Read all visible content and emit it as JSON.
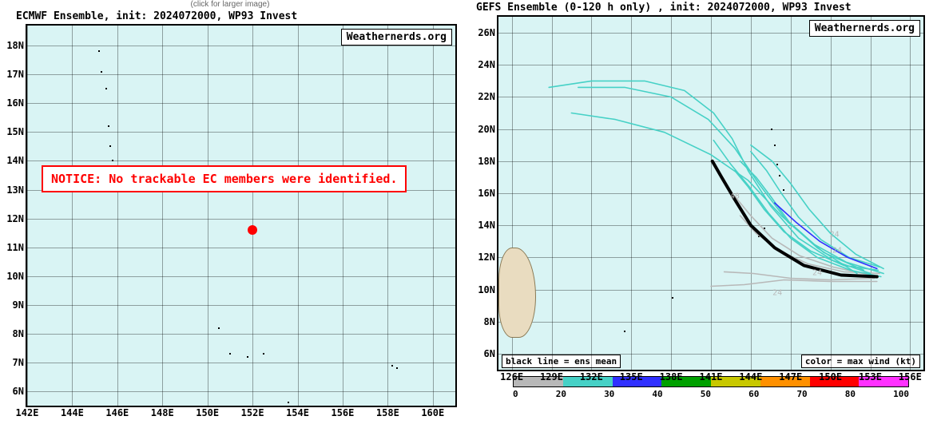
{
  "left": {
    "hint": "(click for larger image)",
    "title": "ECMWF Ensemble, init: 2024072000, WP93 Invest",
    "branding": "Weathernerds.org",
    "notice": "NOTICE: No trackable EC members were identified.",
    "xlim": [
      142,
      161
    ],
    "ylim": [
      5.5,
      18.7
    ],
    "xticks": [
      142,
      144,
      146,
      148,
      150,
      152,
      154,
      156,
      158,
      160
    ],
    "yticks": [
      6,
      7,
      8,
      9,
      10,
      11,
      12,
      13,
      14,
      15,
      16,
      17,
      18
    ],
    "xtick_suffix": "E",
    "ytick_suffix": "N",
    "background_color": "#d9f4f4",
    "grid_color": "#000000",
    "dot": {
      "lon": 152.0,
      "lat": 11.6,
      "color": "#ff0000",
      "size": 12
    },
    "specks": [
      {
        "lon": 145.2,
        "lat": 17.8
      },
      {
        "lon": 145.3,
        "lat": 17.1
      },
      {
        "lon": 145.5,
        "lat": 16.5
      },
      {
        "lon": 145.6,
        "lat": 15.2
      },
      {
        "lon": 145.7,
        "lat": 14.5
      },
      {
        "lon": 145.8,
        "lat": 14.0
      },
      {
        "lon": 150.5,
        "lat": 8.2
      },
      {
        "lon": 151.0,
        "lat": 7.3
      },
      {
        "lon": 151.8,
        "lat": 7.2
      },
      {
        "lon": 152.5,
        "lat": 7.3
      },
      {
        "lon": 153.6,
        "lat": 5.6
      },
      {
        "lon": 158.2,
        "lat": 6.9
      },
      {
        "lon": 158.4,
        "lat": 6.8
      }
    ]
  },
  "right": {
    "title": "GEFS Ensemble (0-120 h only) , init: 2024072000, WP93 Invest",
    "branding": "Weathernerds.org",
    "legend_left": "black line = ens mean",
    "legend_right": "color = max wind (kt)",
    "xlim": [
      125,
      157
    ],
    "ylim": [
      5,
      27
    ],
    "xticks": [
      126,
      129,
      132,
      135,
      138,
      141,
      144,
      147,
      150,
      153,
      156
    ],
    "yticks": [
      6,
      8,
      10,
      12,
      14,
      16,
      18,
      20,
      22,
      24,
      26
    ],
    "xtick_suffix": "E",
    "ytick_suffix": "N",
    "background_color": "#d9f4f4",
    "grid_color": "#000000",
    "land": [
      {
        "lon0": 125.0,
        "lat0": 7.0,
        "lon1": 127.8,
        "lat1": 12.6
      }
    ],
    "mean_track": {
      "color": "#000000",
      "width": 4,
      "pts": [
        {
          "lon": 153.5,
          "lat": 10.8
        },
        {
          "lon": 150.8,
          "lat": 10.9
        },
        {
          "lon": 148.0,
          "lat": 11.5
        },
        {
          "lon": 145.8,
          "lat": 12.6
        },
        {
          "lon": 144.0,
          "lat": 14.0
        },
        {
          "lon": 142.8,
          "lat": 15.6
        },
        {
          "lon": 141.8,
          "lat": 17.0
        },
        {
          "lon": 141.1,
          "lat": 18.0
        }
      ]
    },
    "member_tracks": [
      {
        "color": "#b8b8b8",
        "pts": [
          {
            "lon": 153.5,
            "lat": 10.5
          },
          {
            "lon": 150.0,
            "lat": 10.5
          },
          {
            "lon": 146.5,
            "lat": 10.6
          },
          {
            "lon": 143.5,
            "lat": 10.3
          },
          {
            "lon": 141.0,
            "lat": 10.2
          }
        ]
      },
      {
        "color": "#b8b8b8",
        "pts": [
          {
            "lon": 153.3,
            "lat": 10.7
          },
          {
            "lon": 150.0,
            "lat": 10.6
          },
          {
            "lon": 147.0,
            "lat": 10.7
          },
          {
            "lon": 144.2,
            "lat": 11.0
          },
          {
            "lon": 142.0,
            "lat": 11.1
          }
        ]
      },
      {
        "color": "#b8b8b8",
        "pts": [
          {
            "lon": 153.7,
            "lat": 11.0
          },
          {
            "lon": 151.0,
            "lat": 11.1
          },
          {
            "lon": 148.3,
            "lat": 11.6
          },
          {
            "lon": 146.2,
            "lat": 12.4
          },
          {
            "lon": 144.4,
            "lat": 13.5
          },
          {
            "lon": 143.2,
            "lat": 14.6
          }
        ]
      },
      {
        "color": "#b8b8b8",
        "pts": [
          {
            "lon": 153.0,
            "lat": 10.9
          },
          {
            "lon": 150.2,
            "lat": 11.4
          },
          {
            "lon": 147.7,
            "lat": 12.1
          },
          {
            "lon": 145.6,
            "lat": 13.2
          },
          {
            "lon": 144.0,
            "lat": 14.6
          },
          {
            "lon": 142.8,
            "lat": 15.8
          }
        ]
      },
      {
        "color": "#46d1c6",
        "pts": [
          {
            "lon": 153.6,
            "lat": 11.2
          },
          {
            "lon": 151.0,
            "lat": 11.5
          },
          {
            "lon": 148.5,
            "lat": 12.4
          },
          {
            "lon": 146.5,
            "lat": 13.6
          },
          {
            "lon": 145.0,
            "lat": 15.0
          },
          {
            "lon": 143.8,
            "lat": 16.4
          },
          {
            "lon": 142.8,
            "lat": 17.4
          }
        ]
      },
      {
        "color": "#46d1c6",
        "pts": [
          {
            "lon": 154.0,
            "lat": 11.0
          },
          {
            "lon": 151.2,
            "lat": 11.7
          },
          {
            "lon": 148.8,
            "lat": 12.8
          },
          {
            "lon": 146.9,
            "lat": 14.2
          },
          {
            "lon": 145.5,
            "lat": 15.8
          },
          {
            "lon": 144.4,
            "lat": 17.0
          },
          {
            "lon": 143.2,
            "lat": 18.0
          }
        ]
      },
      {
        "color": "#46d1c6",
        "pts": [
          {
            "lon": 153.7,
            "lat": 11.4
          },
          {
            "lon": 151.4,
            "lat": 12.0
          },
          {
            "lon": 149.3,
            "lat": 13.1
          },
          {
            "lon": 147.6,
            "lat": 14.5
          },
          {
            "lon": 146.3,
            "lat": 16.0
          },
          {
            "lon": 145.2,
            "lat": 17.4
          },
          {
            "lon": 144.0,
            "lat": 18.6
          }
        ]
      },
      {
        "color": "#46d1c6",
        "pts": [
          {
            "lon": 153.8,
            "lat": 10.8
          },
          {
            "lon": 151.5,
            "lat": 11.2
          },
          {
            "lon": 149.0,
            "lat": 12.0
          },
          {
            "lon": 147.0,
            "lat": 13.2
          },
          {
            "lon": 145.3,
            "lat": 14.8
          },
          {
            "lon": 143.9,
            "lat": 16.4
          },
          {
            "lon": 142.5,
            "lat": 17.8
          },
          {
            "lon": 141.2,
            "lat": 19.3
          }
        ]
      },
      {
        "color": "#46d1c6",
        "pts": [
          {
            "lon": 154.0,
            "lat": 11.3
          },
          {
            "lon": 151.9,
            "lat": 12.2
          },
          {
            "lon": 150.0,
            "lat": 13.5
          },
          {
            "lon": 148.4,
            "lat": 15.0
          },
          {
            "lon": 147.0,
            "lat": 16.6
          },
          {
            "lon": 145.6,
            "lat": 18.0
          },
          {
            "lon": 144.0,
            "lat": 19.0
          }
        ]
      },
      {
        "color": "#46d1c6",
        "pts": [
          {
            "lon": 153.0,
            "lat": 11.0
          },
          {
            "lon": 150.2,
            "lat": 11.8
          },
          {
            "lon": 147.6,
            "lat": 13.2
          },
          {
            "lon": 145.5,
            "lat": 15.2
          },
          {
            "lon": 143.8,
            "lat": 17.4
          },
          {
            "lon": 142.6,
            "lat": 19.4
          },
          {
            "lon": 141.2,
            "lat": 21.0
          },
          {
            "lon": 139.0,
            "lat": 22.4
          },
          {
            "lon": 136.0,
            "lat": 23.0
          },
          {
            "lon": 132.0,
            "lat": 23.0
          },
          {
            "lon": 128.8,
            "lat": 22.6
          }
        ]
      },
      {
        "color": "#46d1c6",
        "pts": [
          {
            "lon": 152.5,
            "lat": 11.2
          },
          {
            "lon": 149.5,
            "lat": 12.3
          },
          {
            "lon": 146.8,
            "lat": 14.2
          },
          {
            "lon": 144.6,
            "lat": 16.6
          },
          {
            "lon": 142.8,
            "lat": 18.8
          },
          {
            "lon": 140.8,
            "lat": 20.6
          },
          {
            "lon": 138.0,
            "lat": 22.0
          },
          {
            "lon": 134.5,
            "lat": 22.6
          },
          {
            "lon": 131.0,
            "lat": 22.6
          }
        ]
      },
      {
        "color": "#46d1c6",
        "pts": [
          {
            "lon": 152.0,
            "lat": 11.0
          },
          {
            "lon": 149.0,
            "lat": 12.6
          },
          {
            "lon": 146.3,
            "lat": 14.6
          },
          {
            "lon": 143.8,
            "lat": 16.8
          },
          {
            "lon": 141.0,
            "lat": 18.4
          },
          {
            "lon": 137.5,
            "lat": 19.8
          },
          {
            "lon": 133.8,
            "lat": 20.6
          },
          {
            "lon": 130.5,
            "lat": 21.0
          }
        ]
      },
      {
        "color": "#3030ff",
        "pts": [
          {
            "lon": 153.5,
            "lat": 11.3
          },
          {
            "lon": 151.3,
            "lat": 12.0
          },
          {
            "lon": 149.2,
            "lat": 13.0
          },
          {
            "lon": 147.4,
            "lat": 14.2
          },
          {
            "lon": 145.8,
            "lat": 15.4
          }
        ]
      }
    ],
    "hour_labels": [
      {
        "text": "24",
        "lon": 150.5,
        "lat": 12.4
      },
      {
        "text": "24",
        "lon": 149.0,
        "lat": 11.0
      },
      {
        "text": "24",
        "lon": 146.0,
        "lat": 9.8
      },
      {
        "text": "48",
        "lon": 142.8,
        "lat": 15.8
      },
      {
        "text": "24",
        "lon": 150.3,
        "lat": 13.4
      }
    ],
    "specks": [
      {
        "lon": 146.5,
        "lat": 16.2
      },
      {
        "lon": 146.2,
        "lat": 17.1
      },
      {
        "lon": 146.0,
        "lat": 17.8
      },
      {
        "lon": 145.8,
        "lat": 19.0
      },
      {
        "lon": 145.6,
        "lat": 20.0
      },
      {
        "lon": 145.3,
        "lat": 14.8
      },
      {
        "lon": 145.0,
        "lat": 13.8
      },
      {
        "lon": 144.6,
        "lat": 13.3
      },
      {
        "lon": 134.5,
        "lat": 7.4
      },
      {
        "lon": 138.1,
        "lat": 9.5
      }
    ],
    "colorbar": {
      "breaks": [
        0,
        20,
        30,
        40,
        50,
        60,
        70,
        80,
        100
      ],
      "colors": [
        "#b8b8b8",
        "#46d1c6",
        "#3030ff",
        "#00a000",
        "#c8c800",
        "#ff9000",
        "#ff0000",
        "#ff30ff"
      ]
    }
  }
}
